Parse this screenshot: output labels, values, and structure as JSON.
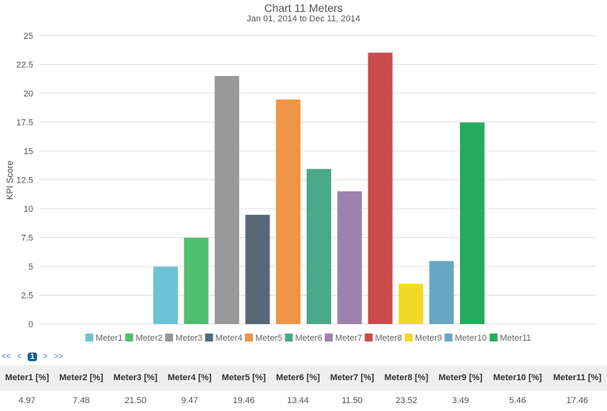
{
  "chart_data": {
    "type": "bar",
    "title": "Chart 11 Meters",
    "subtitle": "Jan 01, 2014  to  Dec 11, 2014",
    "ylabel": "KPI Score",
    "xlabel": "",
    "ylim": [
      0,
      25
    ],
    "yticks": [
      "0",
      "2.5",
      "5",
      "7.5",
      "10",
      "12.5",
      "15",
      "17.5",
      "20",
      "22.5",
      "25"
    ],
    "grid": true,
    "legend_position": "bottom",
    "series": [
      {
        "name": "Meter1",
        "value": 4.97,
        "color": "#6cc3d5"
      },
      {
        "name": "Meter2",
        "value": 7.48,
        "color": "#4fbf6f"
      },
      {
        "name": "Meter3",
        "value": 21.5,
        "color": "#999999"
      },
      {
        "name": "Meter4",
        "value": 9.47,
        "color": "#566778"
      },
      {
        "name": "Meter5",
        "value": 19.46,
        "color": "#ef9449"
      },
      {
        "name": "Meter6",
        "value": 13.44,
        "color": "#49a98a"
      },
      {
        "name": "Meter7",
        "value": 11.5,
        "color": "#9d82ad"
      },
      {
        "name": "Meter8",
        "value": 23.52,
        "color": "#c84c4c"
      },
      {
        "name": "Meter9",
        "value": 3.49,
        "color": "#f4d925"
      },
      {
        "name": "Meter10",
        "value": 5.46,
        "color": "#66a7c5"
      },
      {
        "name": "Meter11",
        "value": 17.46,
        "color": "#25ad5f"
      }
    ]
  },
  "pager": {
    "first": "<<",
    "prev": "<",
    "current": "1",
    "next": ">",
    "last": ">>"
  },
  "table": {
    "headers": [
      "Meter1 [%]",
      "Meter2 [%]",
      "Meter3 [%]",
      "Meter4 [%]",
      "Meter5 [%]",
      "Meter6 [%]",
      "Meter7 [%]",
      "Meter8 [%]",
      "Meter9 [%]",
      "Meter10 [%]",
      "Meter11 [%]"
    ],
    "values": [
      "4.97",
      "7.48",
      "21.50",
      "9.47",
      "19.46",
      "13.44",
      "11.50",
      "23.52",
      "3.49",
      "5.46",
      "17.46"
    ]
  }
}
